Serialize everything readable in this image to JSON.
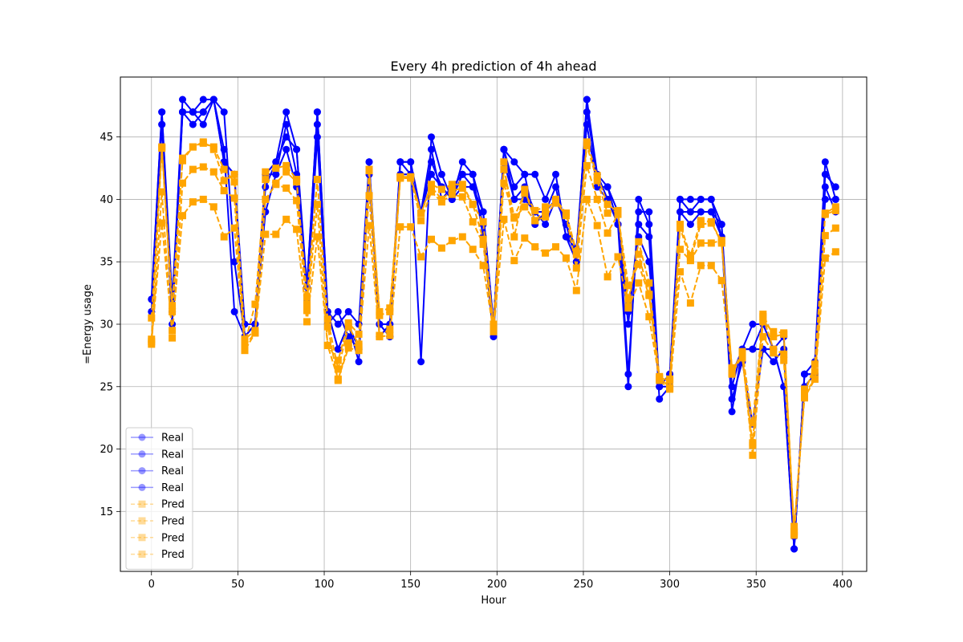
{
  "chart_data": {
    "type": "line",
    "title": "Every 4h prediction of 4h ahead",
    "xlabel": "Hour",
    "ylabel": "=Energy usage",
    "xlim": [
      -18,
      414
    ],
    "ylim": [
      10.2,
      49.8
    ],
    "xticks": [
      0,
      50,
      100,
      150,
      200,
      250,
      300,
      350,
      400
    ],
    "yticks": [
      15,
      20,
      25,
      30,
      35,
      40,
      45
    ],
    "grid": true,
    "legend_position": "lower-left",
    "colors": {
      "real": "#0000ff",
      "pred": "#ffa500"
    },
    "x": [
      0,
      6,
      12,
      18,
      24,
      30,
      36,
      42,
      48,
      54,
      60,
      66,
      72,
      78,
      84,
      90,
      96,
      102,
      108,
      114,
      120,
      126,
      132,
      138,
      144,
      150,
      156,
      162,
      168,
      174,
      180,
      186,
      192,
      198,
      204,
      210,
      216,
      222,
      228,
      234,
      240,
      246,
      252,
      258,
      264,
      270,
      276,
      282,
      288,
      294,
      300,
      306,
      312,
      318,
      324,
      330,
      336,
      342,
      348,
      354,
      360,
      366,
      372,
      378,
      384,
      390,
      396
    ],
    "series": [
      {
        "name": "Real",
        "kind": "real",
        "values": [
          32,
          47,
          31,
          48,
          47,
          48,
          48,
          47,
          35,
          29,
          30,
          42,
          43,
          47,
          44,
          33,
          47,
          31,
          28,
          30,
          27,
          43,
          29,
          30,
          43,
          43,
          27,
          45,
          42,
          40,
          43,
          42,
          37,
          29,
          44,
          43,
          42,
          42,
          40,
          42,
          37,
          35,
          48,
          42,
          40,
          38,
          25,
          40,
          38,
          25,
          25,
          40,
          40,
          40,
          40,
          37,
          23,
          28,
          28,
          30,
          28,
          29,
          12,
          26,
          27,
          43,
          40
        ]
      },
      {
        "name": "Real",
        "kind": "real",
        "values": [
          31,
          46,
          30,
          47,
          47,
          46,
          48,
          44,
          31,
          29,
          30,
          41,
          43,
          45,
          44,
          32,
          46,
          31,
          30,
          31,
          30,
          43,
          30,
          29,
          43,
          43,
          39,
          44,
          40,
          41,
          42,
          42,
          39,
          30,
          44,
          41,
          42,
          38,
          39,
          41,
          37,
          36,
          47,
          42,
          41,
          39,
          26,
          39,
          39,
          25,
          26,
          40,
          39,
          40,
          40,
          38,
          24,
          27,
          22,
          28,
          27,
          28,
          13,
          25,
          26,
          42,
          41
        ]
      },
      {
        "name": "Real",
        "kind": "real",
        "values": [
          31,
          46,
          31,
          47,
          46,
          47,
          48,
          43,
          42,
          29,
          30,
          39,
          42,
          46,
          42,
          32,
          45,
          30,
          31,
          29,
          28,
          42,
          30,
          30,
          42,
          42,
          39,
          43,
          41,
          40,
          41,
          41,
          38,
          30,
          43,
          40,
          41,
          39,
          38,
          40,
          38,
          36,
          46,
          41,
          40,
          38,
          30,
          38,
          37,
          24,
          25,
          39,
          39,
          39,
          39,
          38,
          25,
          28,
          30,
          30,
          28,
          25,
          12,
          26,
          26,
          41,
          39
        ]
      },
      {
        "name": "Real",
        "kind": "real",
        "values": [
          32,
          47,
          32,
          47,
          47,
          47,
          48,
          43,
          42,
          30,
          30,
          42,
          42,
          44,
          41,
          33,
          47,
          31,
          28,
          30,
          28,
          42,
          30,
          29,
          43,
          42,
          39,
          42,
          41,
          40,
          42,
          41,
          39,
          30,
          44,
          40,
          40,
          39,
          39,
          40,
          38,
          35,
          48,
          41,
          41,
          38,
          31,
          37,
          35,
          25,
          26,
          39,
          38,
          39,
          39,
          37,
          26,
          28,
          28,
          28,
          28,
          25,
          12,
          26,
          26,
          40,
          40
        ]
      },
      {
        "name": "Pred",
        "kind": "pred",
        "values": [
          30.5,
          44.2,
          31.5,
          43.3,
          44.2,
          44.6,
          44.0,
          41.5,
          42.0,
          28.8,
          29.5,
          42.2,
          42.5,
          42.7,
          41.6,
          31.6,
          41.6,
          29.8,
          25.5,
          28.5,
          28.2,
          42.3,
          31.0,
          31.3,
          41.8,
          41.8,
          38.9,
          41.2,
          40.8,
          41.2,
          41.2,
          39.6,
          36.8,
          30.0,
          43.0,
          37.0,
          40.8,
          38.3,
          39.1,
          40.0,
          38.9,
          35.8,
          44.6,
          41.9,
          39.6,
          39.0,
          31.4,
          36.6,
          33.3,
          25.8,
          24.9,
          38.0,
          35.5,
          38.3,
          38.2,
          36.5,
          26.5,
          27.3,
          20.5,
          30.8,
          29.0,
          29.2,
          13.1,
          24.8,
          26.2,
          38.9,
          39.4
        ]
      },
      {
        "name": "Pred",
        "kind": "pred",
        "values": [
          28.4,
          40.6,
          28.9,
          41.3,
          42.4,
          42.6,
          42.2,
          40.7,
          40.1,
          27.9,
          29.3,
          40.0,
          41.2,
          40.9,
          39.9,
          31.1,
          39.6,
          28.3,
          27.1,
          30.1,
          29.2,
          40.3,
          29.1,
          29.6,
          41.7,
          41.7,
          38.3,
          40.6,
          39.8,
          40.4,
          40.2,
          38.2,
          36.4,
          29.7,
          41.3,
          38.5,
          39.4,
          38.3,
          38.6,
          39.8,
          38.7,
          34.5,
          42.7,
          40.0,
          37.3,
          38.8,
          33.1,
          34.8,
          32.3,
          25.7,
          25.5,
          36.0,
          35.1,
          36.5,
          36.5,
          36.7,
          26.1,
          27.8,
          22.1,
          30.6,
          28.0,
          27.6,
          13.4,
          24.4,
          25.6,
          37.1,
          37.7
        ]
      },
      {
        "name": "Pred",
        "kind": "pred",
        "values": [
          28.8,
          44.1,
          31.0,
          43.1,
          44.2,
          44.5,
          44.2,
          42.4,
          41.4,
          28.4,
          31.6,
          41.6,
          41.3,
          42.2,
          41.4,
          32.2,
          41.6,
          30.4,
          26.4,
          29.8,
          28.4,
          42.4,
          30.7,
          31.0,
          41.8,
          41.8,
          38.9,
          41.0,
          40.0,
          40.7,
          40.9,
          39.6,
          38.2,
          29.6,
          42.4,
          38.6,
          40.5,
          39.1,
          39.4,
          39.7,
          38.9,
          35.6,
          44.3,
          41.5,
          38.9,
          39.1,
          32.0,
          35.6,
          32.4,
          25.6,
          25.6,
          37.7,
          35.2,
          38.0,
          38.1,
          36.7,
          26.4,
          27.4,
          20.3,
          30.2,
          29.4,
          29.3,
          13.3,
          24.4,
          26.8,
          38.8,
          39.1
        ]
      },
      {
        "name": "Pred",
        "kind": "pred",
        "values": [
          28.6,
          38.1,
          29.5,
          38.7,
          39.8,
          40.0,
          39.4,
          37.0,
          37.7,
          28.3,
          29.3,
          37.2,
          37.2,
          38.4,
          37.6,
          30.2,
          37.0,
          28.3,
          25.6,
          28.1,
          27.9,
          37.9,
          29.0,
          29.1,
          37.8,
          37.8,
          35.4,
          36.8,
          36.1,
          36.7,
          37.0,
          36.0,
          34.7,
          29.4,
          38.4,
          35.1,
          36.9,
          36.2,
          35.7,
          36.2,
          35.3,
          32.7,
          40.0,
          37.9,
          33.8,
          35.4,
          31.3,
          33.3,
          30.6,
          25.5,
          24.8,
          34.2,
          31.7,
          34.7,
          34.7,
          33.5,
          26.0,
          27.5,
          19.5,
          29.0,
          27.7,
          27.1,
          13.8,
          24.1,
          25.6,
          35.3,
          35.8
        ]
      }
    ],
    "legend": [
      "Real",
      "Real",
      "Real",
      "Real",
      "Pred",
      "Pred",
      "Pred",
      "Pred"
    ]
  }
}
